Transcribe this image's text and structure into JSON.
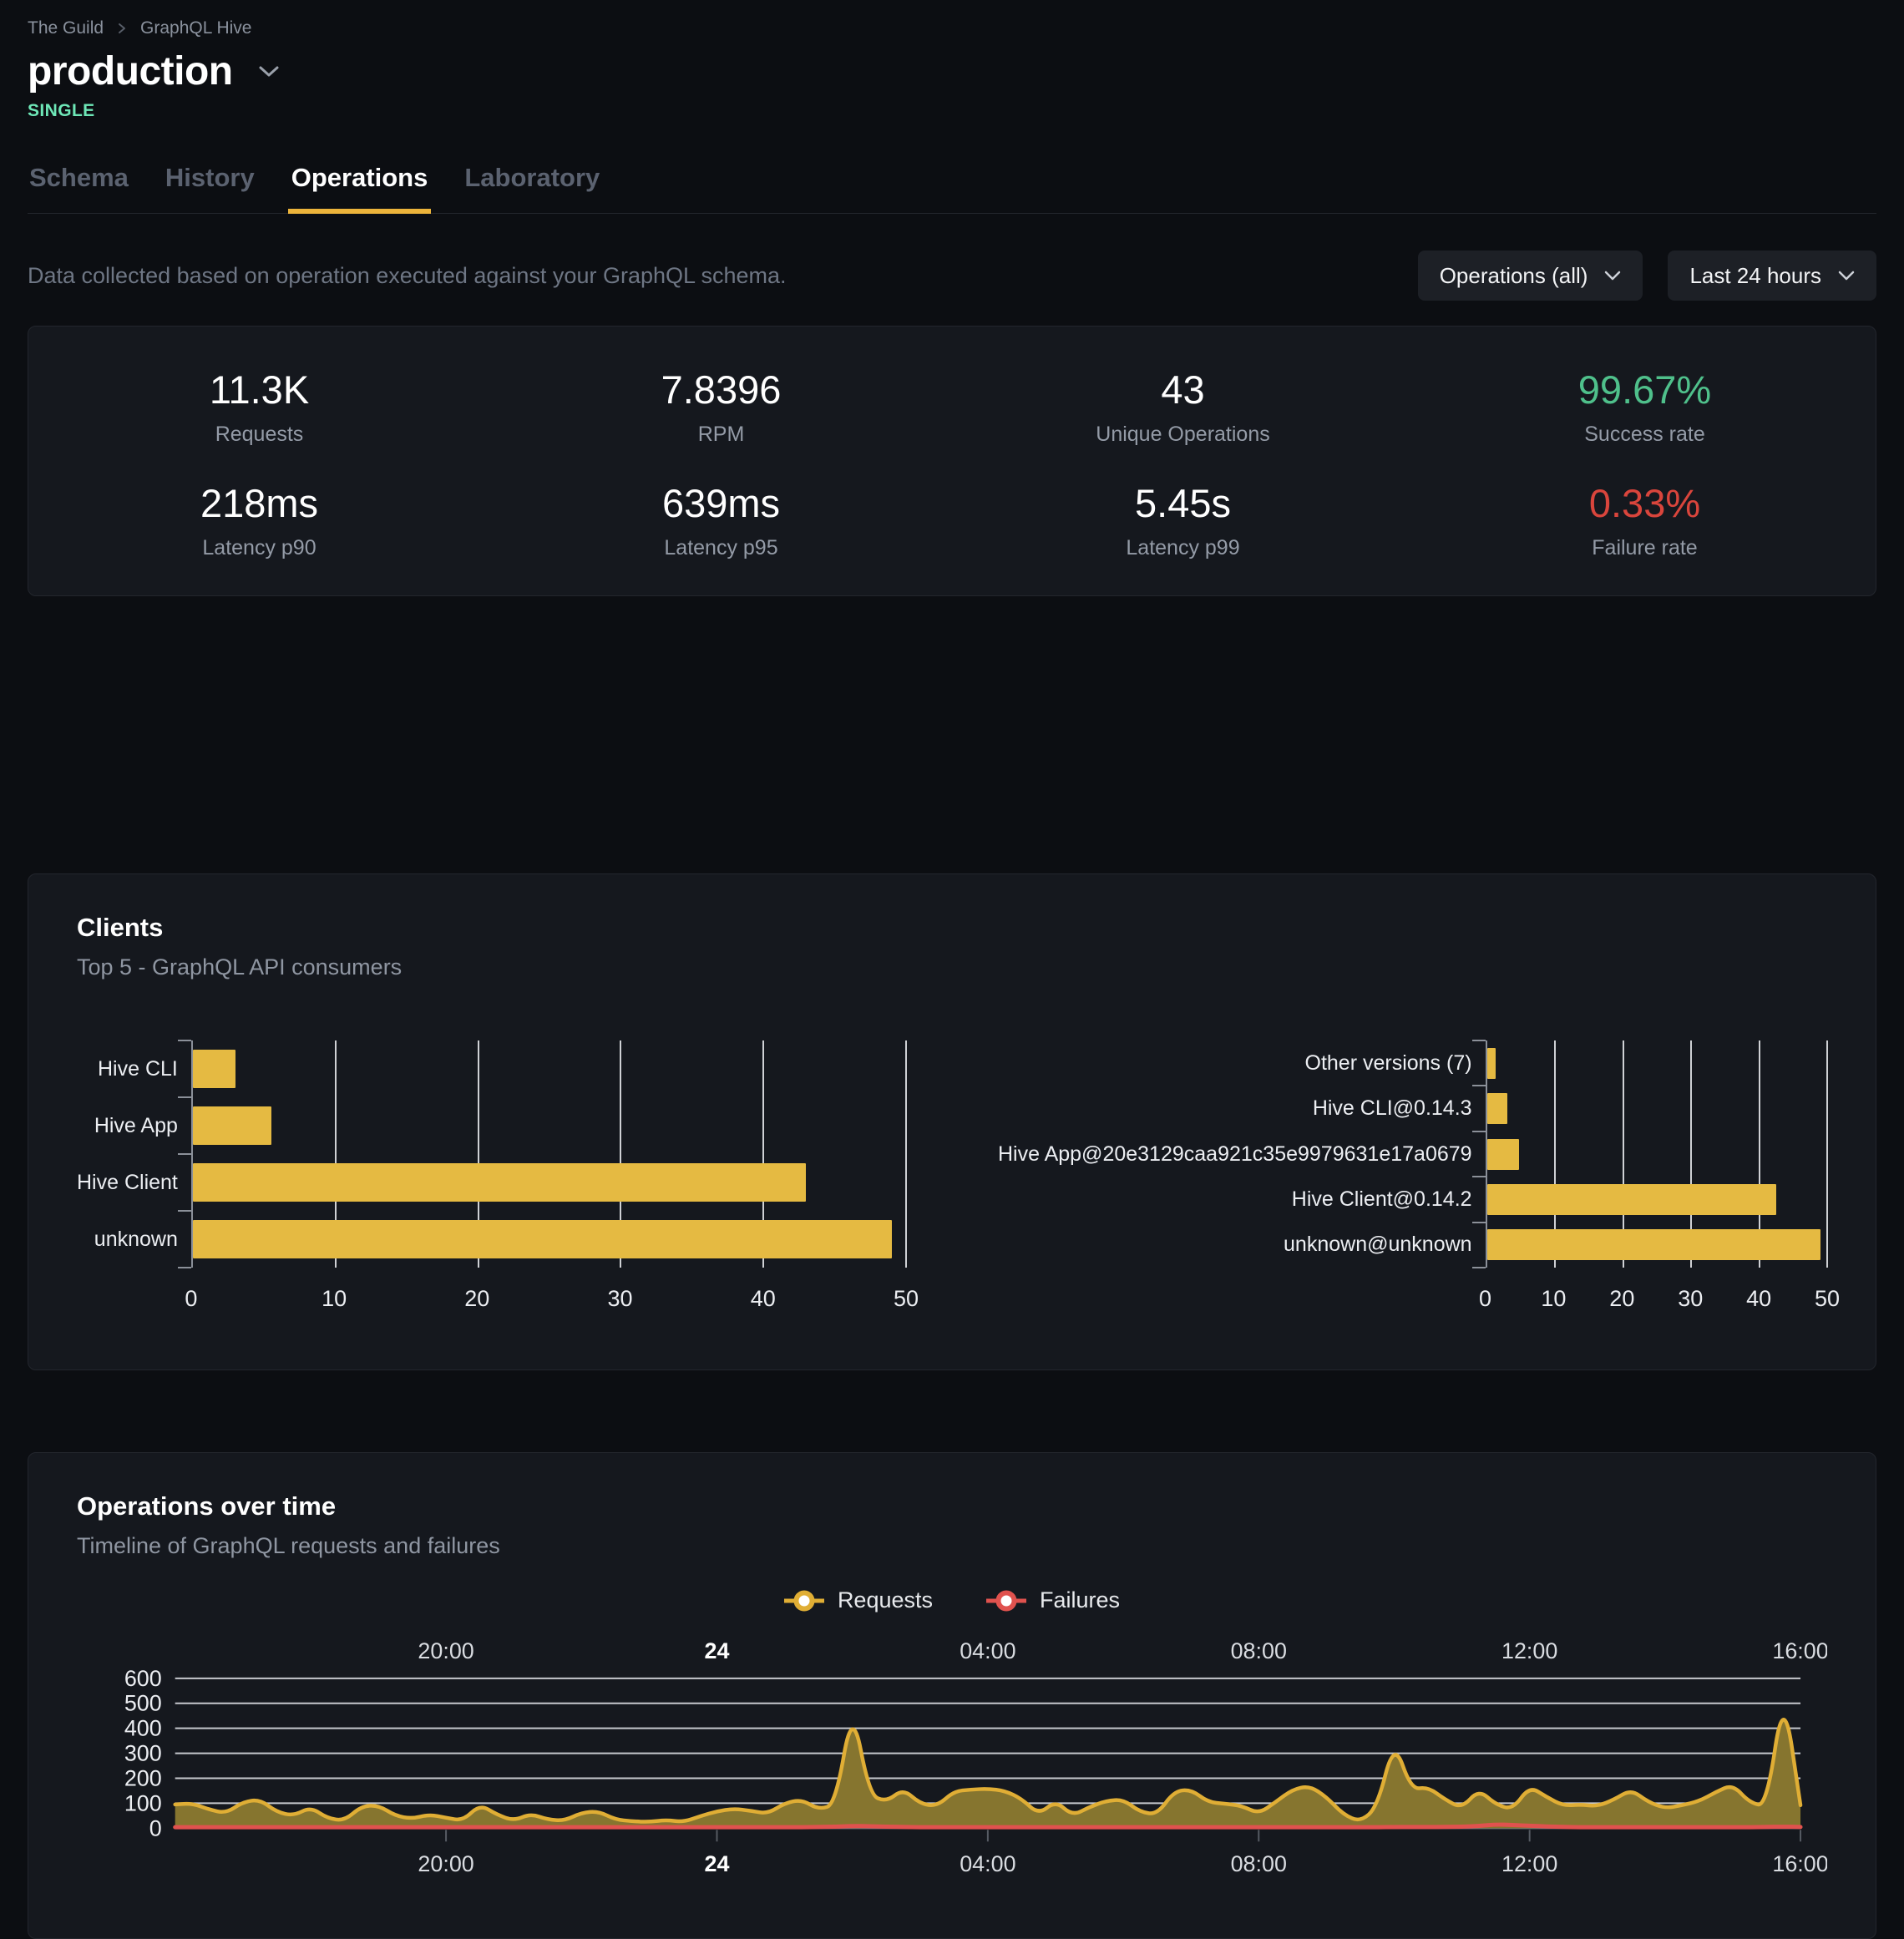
{
  "colors": {
    "accent_yellow": "#e5ba42",
    "success_green": "#4fc08b",
    "failure_red": "#d9453c",
    "badge_teal": "#6ee7b7",
    "tab_underline": "#ecb43b"
  },
  "header": {
    "breadcrumb": {
      "items": [
        "The Guild",
        "GraphQL Hive"
      ]
    },
    "title": "production",
    "badge": "SINGLE",
    "tabs": [
      {
        "label": "Schema",
        "active": false
      },
      {
        "label": "History",
        "active": false
      },
      {
        "label": "Operations",
        "active": true
      },
      {
        "label": "Laboratory",
        "active": false
      }
    ]
  },
  "filters": {
    "description": "Data collected based on operation executed against your GraphQL schema.",
    "operations_dropdown": {
      "label": "Operations (all)"
    },
    "period_dropdown": {
      "label": "Last 24 hours"
    }
  },
  "stats": [
    {
      "value": "11.3K",
      "label": "Requests"
    },
    {
      "value": "7.8396",
      "label": "RPM"
    },
    {
      "value": "43",
      "label": "Unique Operations"
    },
    {
      "value": "99.67%",
      "label": "Success rate",
      "color": "#4fc08b"
    },
    {
      "value": "218ms",
      "label": "Latency p90"
    },
    {
      "value": "639ms",
      "label": "Latency p95"
    },
    {
      "value": "5.45s",
      "label": "Latency p99"
    },
    {
      "value": "0.33%",
      "label": "Failure rate",
      "color": "#d9453c"
    }
  ],
  "clients": {
    "title": "Clients",
    "subtitle": "Top 5 - GraphQL API consumers"
  },
  "operations_over_time": {
    "title": "Operations over time",
    "subtitle": "Timeline of GraphQL requests and failures",
    "legend": [
      {
        "label": "Requests",
        "color": "#e0ae35"
      },
      {
        "label": "Failures",
        "color": "#e0524e"
      }
    ]
  },
  "chart_data": [
    {
      "type": "bar",
      "orientation": "horizontal",
      "title": "Clients - top consumers by client name",
      "categories": [
        "Hive CLI",
        "Hive App",
        "Hive Client",
        "unknown"
      ],
      "values": [
        3,
        5.5,
        43,
        49
      ],
      "xlim": [
        0,
        50
      ],
      "xticks": [
        0,
        10,
        20,
        30,
        40,
        50
      ],
      "color": "#e5ba42",
      "grid": true
    },
    {
      "type": "bar",
      "orientation": "horizontal",
      "title": "Clients - top consumers by client version",
      "categories": [
        "Other versions (7)",
        "Hive CLI@0.14.3",
        "Hive App@20e3129caa921c35e9979631e17a0679",
        "Hive Client@0.14.2",
        "unknown@unknown"
      ],
      "values": [
        1.3,
        3,
        4.7,
        42.5,
        49
      ],
      "xlim": [
        0,
        50
      ],
      "xticks": [
        0,
        10,
        20,
        30,
        40,
        50
      ],
      "color": "#e5ba42",
      "grid": true
    },
    {
      "type": "area",
      "title": "Operations over time",
      "x_labels": [
        "20:00",
        "24",
        "04:00",
        "08:00",
        "12:00",
        "16:00"
      ],
      "x_range_hours": 24,
      "point_interval_minutes": 15,
      "ylim": [
        0,
        600
      ],
      "yticks": [
        0,
        100,
        200,
        300,
        400,
        500,
        600
      ],
      "legend_position": "top-center",
      "series": [
        {
          "name": "Requests",
          "color": "#e0ae35",
          "fill": "#86752f",
          "values": [
            95,
            100,
            75,
            60,
            105,
            115,
            65,
            50,
            85,
            40,
            30,
            88,
            92,
            50,
            38,
            55,
            42,
            30,
            95,
            55,
            30,
            58,
            35,
            30,
            62,
            68,
            35,
            28,
            25,
            33,
            25,
            48,
            68,
            78,
            70,
            58,
            100,
            115,
            75,
            95,
            490,
            135,
            105,
            158,
            98,
            88,
            148,
            155,
            158,
            150,
            118,
            55,
            110,
            50,
            85,
            110,
            115,
            65,
            55,
            148,
            155,
            105,
            98,
            90,
            58,
            105,
            155,
            170,
            125,
            55,
            25,
            85,
            350,
            155,
            165,
            115,
            80,
            155,
            95,
            75,
            168,
            125,
            90,
            95,
            88,
            115,
            155,
            105,
            80,
            92,
            108,
            145,
            175,
            102,
            88,
            550,
            92
          ]
        },
        {
          "name": "Failures",
          "color": "#e0524e",
          "values": [
            4,
            4,
            4,
            4,
            4,
            4,
            4,
            4,
            4,
            4,
            4,
            4,
            4,
            4,
            4,
            4,
            4,
            4,
            4,
            4,
            4,
            4,
            4,
            4,
            4,
            4,
            4,
            4,
            4,
            4,
            4,
            4,
            4,
            4,
            4,
            4,
            4,
            4,
            5,
            6,
            9,
            8,
            6,
            5,
            4,
            4,
            4,
            4,
            4,
            4,
            4,
            4,
            4,
            4,
            4,
            4,
            4,
            4,
            4,
            4,
            4,
            4,
            4,
            4,
            4,
            4,
            4,
            4,
            4,
            4,
            4,
            4,
            5,
            5,
            5,
            5,
            6,
            9,
            15,
            13,
            10,
            7,
            5,
            4,
            4,
            4,
            4,
            4,
            4,
            4,
            4,
            4,
            4,
            4,
            5,
            6,
            5
          ]
        }
      ]
    }
  ]
}
